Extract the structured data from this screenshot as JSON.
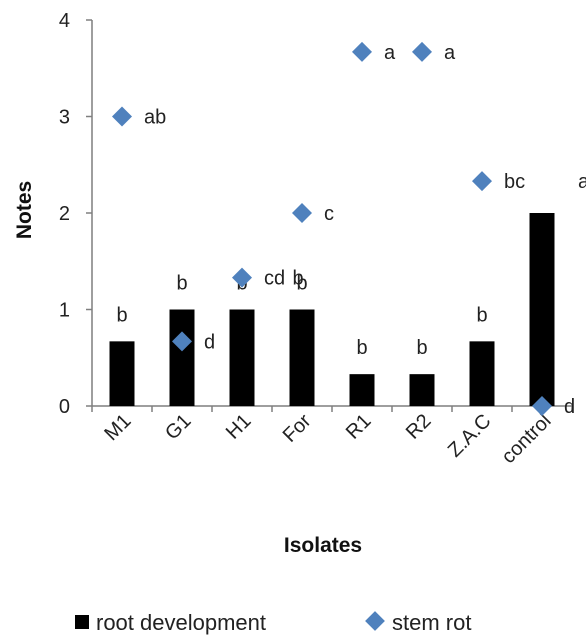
{
  "chart_data": {
    "type": "bar",
    "title": "",
    "xlabel": "Isolates",
    "ylabel": "Notes",
    "ylim": [
      0,
      4
    ],
    "yticks": [
      0,
      1,
      2,
      3,
      4
    ],
    "grid": false,
    "legend_position": "bottom",
    "categories": [
      "M1",
      "G1",
      "H1",
      "For",
      "R1",
      "R2",
      "Z.A.C",
      "control"
    ],
    "series": [
      {
        "name": "root development",
        "kind": "bar",
        "color": "#000000",
        "values": [
          0.67,
          1.0,
          1.0,
          1.0,
          0.33,
          0.33,
          0.67,
          2.0
        ],
        "labels": [
          "b",
          "b",
          "b",
          "b",
          "b",
          "b",
          "b",
          ""
        ]
      },
      {
        "name": "stem rot",
        "kind": "marker",
        "marker": "diamond",
        "color": "#4F81BD",
        "values": [
          3.0,
          0.67,
          1.33,
          2.0,
          3.67,
          3.67,
          2.33,
          0.0
        ],
        "labels": [
          "ab",
          "d",
          "cd",
          "c",
          "a",
          "a",
          "bc",
          "d"
        ]
      }
    ],
    "extra_labels": [
      {
        "category": "For",
        "value": 1.33,
        "text": "b"
      },
      {
        "category": "control",
        "value": 2.33,
        "text": "a"
      }
    ]
  }
}
